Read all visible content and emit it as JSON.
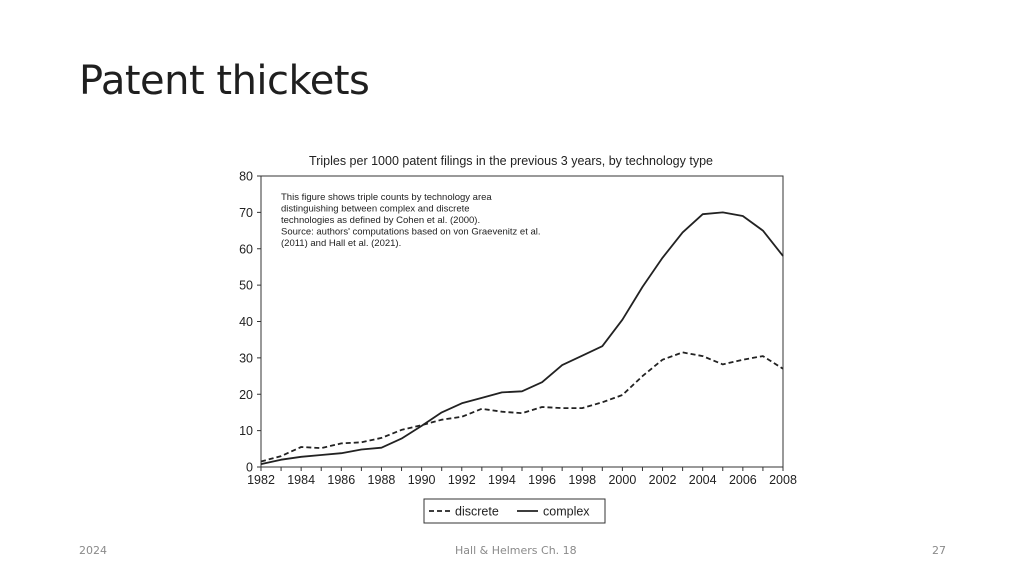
{
  "slide": {
    "title": "Patent thickets",
    "footer_left": "2024",
    "footer_center": "Hall & Helmers Ch. 18",
    "page_number": "27"
  },
  "chart_data": {
    "type": "line",
    "title": "Triples per 1000 patent filings in the previous 3 years, by technology type",
    "note_lines": [
      "This figure shows triple counts by technology area",
      "distinguishing between complex and discrete",
      "technologies as defined by Cohen et al. (2000).",
      "Source: authors' computations based on von Graevenitz et al.",
      "(2011) and Hall et al. (2021)."
    ],
    "xlabel": "",
    "ylabel": "",
    "xlim": [
      1982,
      2008
    ],
    "ylim": [
      0,
      80
    ],
    "x_ticks": [
      1982,
      1984,
      1986,
      1988,
      1990,
      1992,
      1994,
      1996,
      1998,
      2000,
      2002,
      2004,
      2006,
      2008
    ],
    "y_ticks": [
      0,
      10,
      20,
      30,
      40,
      50,
      60,
      70,
      80
    ],
    "legend_position": "bottom",
    "x": [
      1982,
      1983,
      1984,
      1985,
      1986,
      1987,
      1988,
      1989,
      1990,
      1991,
      1992,
      1993,
      1994,
      1995,
      1996,
      1997,
      1998,
      1999,
      2000,
      2001,
      2002,
      2003,
      2004,
      2005,
      2006,
      2007,
      2008
    ],
    "series": [
      {
        "name": "discrete",
        "style": "dashed",
        "values": [
          1.5,
          3,
          5.5,
          5.2,
          6.5,
          6.8,
          8,
          10.2,
          11.5,
          13,
          13.8,
          16,
          15.2,
          14.8,
          16.5,
          16.2,
          16.2,
          17.8,
          19.8,
          25,
          29.5,
          31.5,
          30.5,
          28.2,
          29.5,
          30.5,
          27
        ]
      },
      {
        "name": "complex",
        "style": "solid",
        "values": [
          0.8,
          2,
          2.8,
          3.3,
          3.8,
          4.8,
          5.3,
          7.8,
          11.3,
          15,
          17.5,
          19,
          20.5,
          20.8,
          23.3,
          28,
          30.6,
          33.2,
          40.5,
          49.5,
          57.5,
          64.5,
          69.5,
          70,
          69,
          65,
          58
        ]
      }
    ]
  }
}
